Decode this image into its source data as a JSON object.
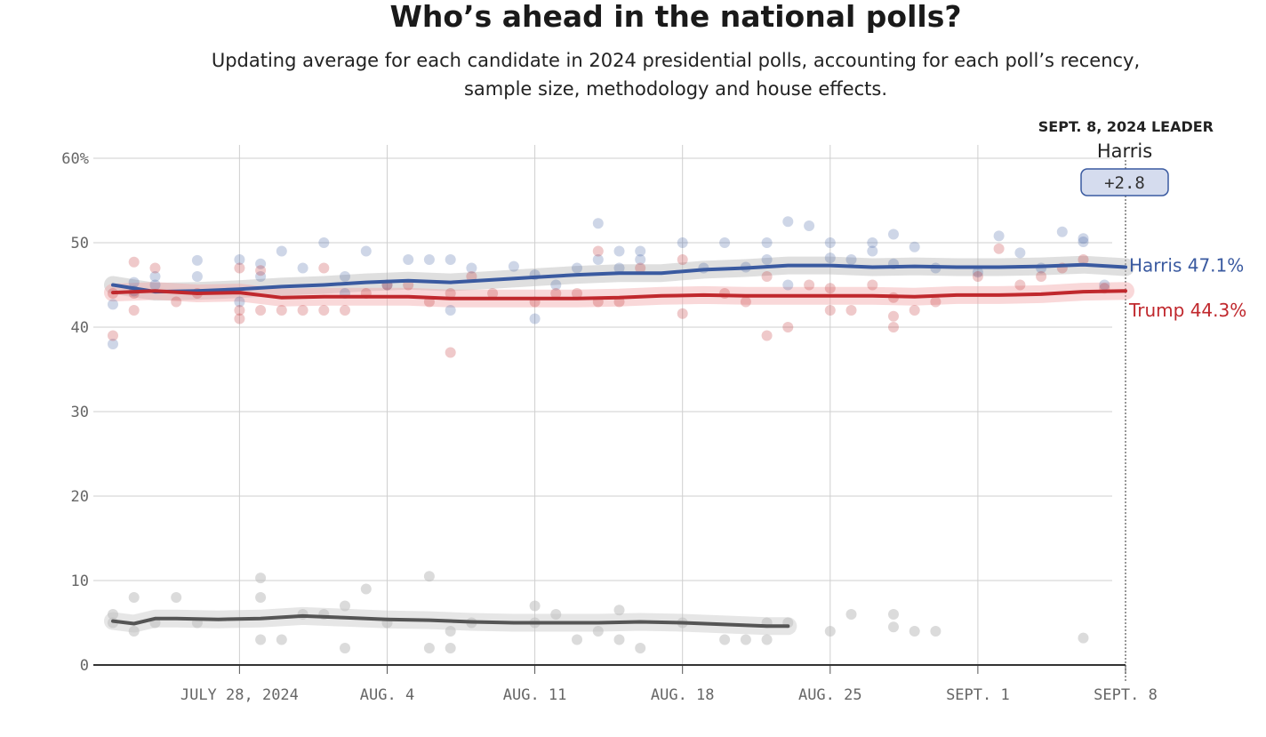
{
  "title": "Who’s ahead in the national polls?",
  "subtitle": "Updating average for each candidate in 2024 presidential polls, accounting for each poll’s recency, sample size, methodology and house effects.",
  "chart_data": {
    "type": "line",
    "y_ticks": [
      {
        "value": 60,
        "label": "60%"
      },
      {
        "value": 50,
        "label": "50"
      },
      {
        "value": 40,
        "label": "40"
      },
      {
        "value": 30,
        "label": "30"
      },
      {
        "value": 20,
        "label": "20"
      },
      {
        "value": 10,
        "label": "10"
      },
      {
        "value": 0,
        "label": "0"
      }
    ],
    "ylim": [
      0,
      60
    ],
    "x_domain": [
      "2024-07-22",
      "2024-09-08"
    ],
    "x_ticks": [
      {
        "date": "2024-07-28",
        "label": "JULY 28, 2024"
      },
      {
        "date": "2024-08-04",
        "label": "AUG. 4"
      },
      {
        "date": "2024-08-11",
        "label": "AUG. 11"
      },
      {
        "date": "2024-08-18",
        "label": "AUG. 18"
      },
      {
        "date": "2024-08-25",
        "label": "AUG. 25"
      },
      {
        "date": "2024-09-01",
        "label": "SEPT. 1"
      },
      {
        "date": "2024-09-08",
        "label": "SEPT. 8"
      }
    ],
    "grid": true,
    "leader": {
      "header": "SEPT. 8, 2024 LEADER",
      "name": "Harris",
      "margin": "+2.8"
    },
    "series": [
      {
        "name": "Harris",
        "end_label": "Harris 47.1%",
        "color": "#3a5aa0",
        "x": [
          "2024-07-22",
          "2024-07-24",
          "2024-07-26",
          "2024-07-28",
          "2024-07-30",
          "2024-08-01",
          "2024-08-03",
          "2024-08-05",
          "2024-08-07",
          "2024-08-09",
          "2024-08-11",
          "2024-08-13",
          "2024-08-15",
          "2024-08-17",
          "2024-08-19",
          "2024-08-21",
          "2024-08-23",
          "2024-08-25",
          "2024-08-27",
          "2024-08-29",
          "2024-08-31",
          "2024-09-02",
          "2024-09-04",
          "2024-09-06",
          "2024-09-08"
        ],
        "y": [
          45.0,
          44.2,
          44.3,
          44.5,
          44.8,
          45.0,
          45.3,
          45.5,
          45.3,
          45.6,
          45.9,
          46.2,
          46.4,
          46.4,
          46.8,
          47.0,
          47.3,
          47.3,
          47.1,
          47.2,
          47.1,
          47.1,
          47.2,
          47.4,
          47.1
        ],
        "polls_x": [
          "2024-07-22",
          "2024-07-22",
          "2024-07-23",
          "2024-07-23",
          "2024-07-24",
          "2024-07-24",
          "2024-07-26",
          "2024-07-26",
          "2024-07-28",
          "2024-07-28",
          "2024-07-29",
          "2024-07-29",
          "2024-07-30",
          "2024-07-31",
          "2024-08-01",
          "2024-08-02",
          "2024-08-02",
          "2024-08-03",
          "2024-08-04",
          "2024-08-05",
          "2024-08-06",
          "2024-08-07",
          "2024-08-07",
          "2024-08-08",
          "2024-08-10",
          "2024-08-11",
          "2024-08-11",
          "2024-08-12",
          "2024-08-13",
          "2024-08-14",
          "2024-08-14",
          "2024-08-15",
          "2024-08-15",
          "2024-08-16",
          "2024-08-16",
          "2024-08-18",
          "2024-08-19",
          "2024-08-20",
          "2024-08-21",
          "2024-08-22",
          "2024-08-22",
          "2024-08-23",
          "2024-08-23",
          "2024-08-24",
          "2024-08-25",
          "2024-08-25",
          "2024-08-26",
          "2024-08-27",
          "2024-08-27",
          "2024-08-28",
          "2024-08-28",
          "2024-08-29",
          "2024-08-30",
          "2024-09-01",
          "2024-09-02",
          "2024-09-03",
          "2024-09-04",
          "2024-09-05",
          "2024-09-06",
          "2024-09-06",
          "2024-09-07"
        ],
        "polls_y": [
          38.0,
          42.7,
          45.3,
          44.3,
          45.0,
          46.0,
          47.9,
          46.0,
          48.0,
          43.0,
          46.0,
          47.5,
          49.0,
          47.0,
          50.0,
          46.0,
          44.0,
          49.0,
          45.0,
          48.0,
          48.0,
          48.0,
          42.0,
          47.0,
          47.2,
          46.2,
          41.0,
          45.0,
          47.0,
          52.3,
          48.0,
          49.0,
          47.0,
          49.0,
          48.0,
          50.0,
          47.0,
          50.0,
          47.1,
          48.0,
          50.0,
          52.5,
          45.0,
          52.0,
          50.0,
          48.2,
          48.0,
          50.0,
          49.0,
          51.0,
          47.5,
          49.5,
          47.0,
          46.5,
          50.8,
          48.8,
          47.0,
          51.3,
          50.5,
          50.1,
          45.0
        ]
      },
      {
        "name": "Trump",
        "end_label": "Trump 44.3%",
        "color": "#c0282d",
        "x": [
          "2024-07-22",
          "2024-07-24",
          "2024-07-26",
          "2024-07-28",
          "2024-07-30",
          "2024-08-01",
          "2024-08-03",
          "2024-08-05",
          "2024-08-07",
          "2024-08-09",
          "2024-08-11",
          "2024-08-13",
          "2024-08-15",
          "2024-08-17",
          "2024-08-19",
          "2024-08-21",
          "2024-08-23",
          "2024-08-25",
          "2024-08-27",
          "2024-08-29",
          "2024-08-31",
          "2024-09-02",
          "2024-09-04",
          "2024-09-06",
          "2024-09-08"
        ],
        "y": [
          44.1,
          44.3,
          44.0,
          44.1,
          43.5,
          43.6,
          43.6,
          43.6,
          43.4,
          43.4,
          43.4,
          43.4,
          43.5,
          43.7,
          43.8,
          43.7,
          43.7,
          43.7,
          43.7,
          43.6,
          43.8,
          43.8,
          43.9,
          44.2,
          44.3
        ],
        "polls_x": [
          "2024-07-22",
          "2024-07-22",
          "2024-07-23",
          "2024-07-23",
          "2024-07-23",
          "2024-07-24",
          "2024-07-25",
          "2024-07-26",
          "2024-07-28",
          "2024-07-28",
          "2024-07-28",
          "2024-07-29",
          "2024-07-29",
          "2024-07-30",
          "2024-07-31",
          "2024-08-01",
          "2024-08-01",
          "2024-08-02",
          "2024-08-03",
          "2024-08-04",
          "2024-08-05",
          "2024-08-06",
          "2024-08-07",
          "2024-08-07",
          "2024-08-08",
          "2024-08-09",
          "2024-08-11",
          "2024-08-12",
          "2024-08-13",
          "2024-08-14",
          "2024-08-14",
          "2024-08-15",
          "2024-08-16",
          "2024-08-18",
          "2024-08-18",
          "2024-08-20",
          "2024-08-21",
          "2024-08-22",
          "2024-08-22",
          "2024-08-23",
          "2024-08-24",
          "2024-08-25",
          "2024-08-25",
          "2024-08-26",
          "2024-08-27",
          "2024-08-28",
          "2024-08-28",
          "2024-08-28",
          "2024-08-29",
          "2024-08-30",
          "2024-09-01",
          "2024-09-02",
          "2024-09-03",
          "2024-09-04",
          "2024-09-05",
          "2024-09-06",
          "2024-09-07"
        ],
        "polls_y": [
          39.0,
          44.0,
          47.7,
          42.0,
          44.0,
          47.0,
          43.0,
          44.0,
          47.0,
          42.0,
          41.0,
          46.7,
          42.0,
          42.0,
          42.0,
          47.0,
          42.0,
          42.0,
          44.0,
          45.0,
          45.0,
          43.0,
          44.0,
          37.0,
          46.0,
          44.0,
          43.0,
          44.0,
          44.0,
          49.0,
          43.0,
          43.0,
          47.0,
          48.0,
          41.6,
          44.0,
          43.0,
          39.0,
          46.0,
          40.0,
          45.0,
          42.0,
          44.6,
          42.0,
          45.0,
          41.3,
          40.0,
          43.5,
          42.0,
          43.0,
          46.0,
          49.3,
          45.0,
          46.0,
          47.0,
          48.0,
          44.6
        ]
      },
      {
        "name": "",
        "end_label": "",
        "color": "#555555",
        "x": [
          "2024-07-22",
          "2024-07-23",
          "2024-07-24",
          "2024-07-25",
          "2024-07-27",
          "2024-07-29",
          "2024-07-31",
          "2024-08-02",
          "2024-08-04",
          "2024-08-06",
          "2024-08-08",
          "2024-08-10",
          "2024-08-12",
          "2024-08-14",
          "2024-08-16",
          "2024-08-18",
          "2024-08-20",
          "2024-08-22",
          "2024-08-23"
        ],
        "y": [
          5.2,
          4.9,
          5.5,
          5.5,
          5.4,
          5.5,
          5.8,
          5.6,
          5.4,
          5.3,
          5.1,
          5.0,
          5.0,
          5.0,
          5.1,
          5.0,
          4.8,
          4.6,
          4.6
        ],
        "polls_x": [
          "2024-07-22",
          "2024-07-22",
          "2024-07-23",
          "2024-07-23",
          "2024-07-24",
          "2024-07-25",
          "2024-07-26",
          "2024-07-29",
          "2024-07-29",
          "2024-07-29",
          "2024-07-30",
          "2024-07-31",
          "2024-08-01",
          "2024-08-02",
          "2024-08-02",
          "2024-08-03",
          "2024-08-04",
          "2024-08-06",
          "2024-08-06",
          "2024-08-07",
          "2024-08-07",
          "2024-08-08",
          "2024-08-11",
          "2024-08-11",
          "2024-08-12",
          "2024-08-13",
          "2024-08-14",
          "2024-08-15",
          "2024-08-15",
          "2024-08-16",
          "2024-08-18",
          "2024-08-20",
          "2024-08-21",
          "2024-08-22",
          "2024-08-22",
          "2024-08-23",
          "2024-08-25",
          "2024-08-26",
          "2024-08-28",
          "2024-08-28",
          "2024-08-29",
          "2024-08-30",
          "2024-09-06"
        ],
        "polls_y": [
          5.0,
          6.0,
          8.0,
          4.0,
          5.0,
          8.0,
          5.0,
          10.3,
          3.0,
          8.0,
          3.0,
          6.0,
          6.0,
          7.0,
          2.0,
          9.0,
          5.0,
          10.5,
          2.0,
          4.0,
          2.0,
          5.0,
          7.0,
          5.0,
          6.0,
          3.0,
          4.0,
          6.5,
          3.0,
          2.0,
          5.0,
          3.0,
          3.0,
          5.0,
          3.0,
          5.0,
          4.0,
          6.0,
          6.0,
          4.5,
          4.0,
          4.0,
          3.2
        ]
      }
    ]
  }
}
